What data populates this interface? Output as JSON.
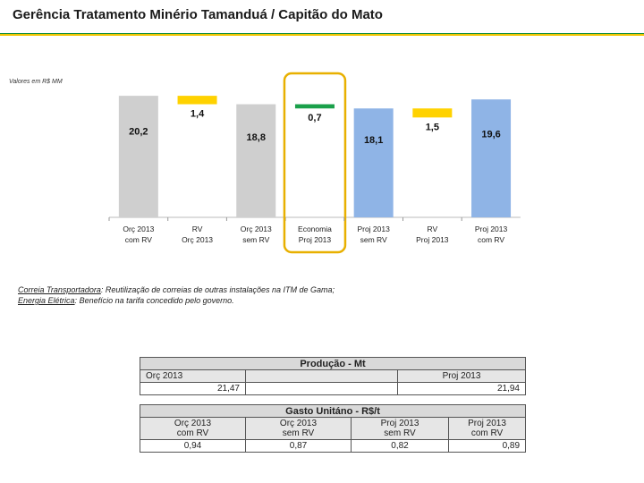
{
  "slide": {
    "title": "Gerência Tratamento Minério Tamanduá / Capitão do Mato",
    "unit_note": "Valores em R$ MM"
  },
  "chart_data": {
    "type": "bar",
    "subtype": "waterfall",
    "categories": [
      "Orç 2013 com RV",
      "RV Orç 2013",
      "Orç 2013 sem RV",
      "Economia Proj 2013",
      "Proj 2013 sem RV",
      "RV Proj 2013",
      "Proj 2013 com RV"
    ],
    "category_lines": [
      [
        "Orç 2013",
        "com RV"
      ],
      [
        "RV",
        "Orç 2013"
      ],
      [
        "Orç 2013",
        "sem RV"
      ],
      [
        "Economia",
        "Proj 2013"
      ],
      [
        "Proj 2013",
        "sem RV"
      ],
      [
        "RV",
        "Proj 2013"
      ],
      [
        "Proj 2013",
        "com RV"
      ]
    ],
    "values": [
      20.2,
      1.4,
      18.8,
      0.7,
      18.1,
      1.5,
      19.6
    ],
    "labels": [
      "20,2",
      "1,4",
      "18,8",
      "0,7",
      "18,1",
      "1,5",
      "19,6"
    ],
    "bar_kinds": [
      "total",
      "delta",
      "total",
      "delta",
      "total",
      "delta",
      "total"
    ],
    "colors": [
      "#cfcfcf",
      "#ffd200",
      "#cfcfcf",
      "#1aa04a",
      "#8fb4e6",
      "#ffd200",
      "#8fb4e6"
    ],
    "highlight_category": "Economia Proj 2013",
    "highlight_color": "#e8b000",
    "title": "",
    "xlabel": "",
    "ylabel": "",
    "ylim": [
      0,
      22
    ]
  },
  "notes": [
    {
      "label": "Correia Transportadora",
      "sep": ": ",
      "text": "Reutilização de correias de outras instalações na ITM de Gama;"
    },
    {
      "label": "Energia Elétrica",
      "sep": ":  ",
      "text": "Benefício  na tarifa concedido pelo governo."
    }
  ],
  "table": {
    "producao_header": "Produção - Mt",
    "orc_label": "Orç 2013",
    "orc_value": "21,47",
    "proj_label": "Proj 2013",
    "proj_value": "21,94",
    "gasto_header": "Gasto Unitáno - R$/t",
    "cols": [
      {
        "line1": "Orç 2013",
        "line2": "com RV",
        "value": "0,94"
      },
      {
        "line1": "Orç 2013",
        "line2": "sem RV",
        "value": "0,87"
      },
      {
        "line1": "Proj 2013",
        "line2": "sem RV",
        "value": "0,82"
      },
      {
        "line1": "Proj 2013",
        "line2": "com RV",
        "value": "0,89"
      }
    ]
  }
}
